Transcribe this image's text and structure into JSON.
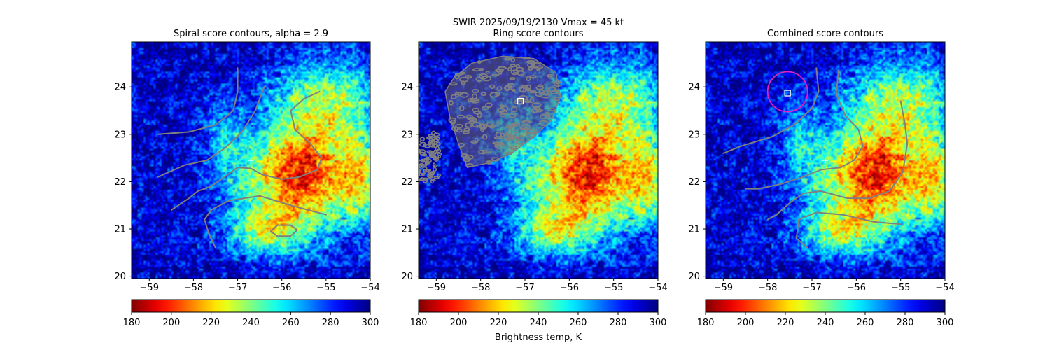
{
  "suptitle": "SWIR  2025/09/19/2130    Vmax = 45 kt",
  "colorbar_label": "Brightness temp, K",
  "colormap": "jet_r",
  "colors": {
    "contour_line": "#808080",
    "center_marker": "#ffffff",
    "ring_marker": "#ffffff",
    "circle": "#e020c0"
  },
  "chart_data": [
    {
      "type": "heatmap",
      "title": "Spiral score contours, alpha =  2.9",
      "x_ticks": [
        -59,
        -58,
        -57,
        -56,
        -55,
        -54
      ],
      "y_ticks": [
        20,
        21,
        22,
        23,
        24
      ],
      "xlim": [
        -59.4,
        -54.0
      ],
      "ylim": [
        19.95,
        24.95
      ],
      "colorbar": {
        "min": 180,
        "max": 300,
        "ticks": [
          180,
          200,
          220,
          240,
          260,
          280,
          300
        ]
      },
      "center_plus": {
        "lon": -56.7,
        "lat": 22.45
      },
      "contours": [
        [
          [
            -57.0,
            24.4
          ],
          [
            -57.0,
            23.9
          ],
          [
            -57.1,
            23.5
          ],
          [
            -57.5,
            23.2
          ],
          [
            -58.1,
            23.05
          ],
          [
            -58.8,
            23.0
          ]
        ],
        [
          [
            -56.4,
            24.0
          ],
          [
            -56.6,
            23.5
          ],
          [
            -56.9,
            23.05
          ],
          [
            -57.3,
            22.7
          ],
          [
            -57.7,
            22.45
          ],
          [
            -58.2,
            22.35
          ],
          [
            -58.8,
            22.1
          ]
        ],
        [
          [
            -55.15,
            23.9
          ],
          [
            -55.5,
            23.75
          ],
          [
            -55.8,
            23.5
          ],
          [
            -55.7,
            23.1
          ],
          [
            -55.35,
            22.8
          ],
          [
            -55.1,
            22.5
          ],
          [
            -55.2,
            22.25
          ],
          [
            -55.6,
            22.1
          ],
          [
            -56.0,
            22.05
          ],
          [
            -56.45,
            22.15
          ],
          [
            -56.7,
            22.28
          ],
          [
            -57.0,
            22.3
          ],
          [
            -57.3,
            22.1
          ],
          [
            -57.6,
            21.9
          ],
          [
            -57.9,
            21.8
          ],
          [
            -58.1,
            21.65
          ],
          [
            -58.5,
            21.4
          ]
        ],
        [
          [
            -57.5,
            20.6
          ],
          [
            -57.65,
            20.9
          ],
          [
            -57.75,
            21.2
          ],
          [
            -57.6,
            21.4
          ],
          [
            -57.2,
            21.6
          ],
          [
            -56.5,
            21.7
          ],
          [
            -55.8,
            21.5
          ],
          [
            -55.4,
            21.4
          ],
          [
            -55.0,
            21.3
          ]
        ],
        [
          [
            -56.1,
            20.85
          ],
          [
            -55.8,
            20.85
          ],
          [
            -55.65,
            20.98
          ],
          [
            -55.8,
            21.08
          ],
          [
            -56.1,
            21.08
          ],
          [
            -56.25,
            20.95
          ],
          [
            -56.1,
            20.85
          ]
        ]
      ]
    },
    {
      "type": "heatmap",
      "title": "Ring score contours",
      "x_ticks": [
        -59,
        -58,
        -57,
        -56,
        -55,
        -54
      ],
      "y_ticks": [
        20,
        21,
        22,
        23,
        24
      ],
      "xlim": [
        -59.4,
        -54.0
      ],
      "ylim": [
        19.95,
        24.95
      ],
      "colorbar": {
        "min": 180,
        "max": 300,
        "ticks": [
          180,
          200,
          220,
          240,
          260,
          280,
          300
        ]
      },
      "ring_marker": {
        "lon": -57.1,
        "lat": 23.7
      },
      "contour_region": [
        [
          -58.6,
          24.2
        ],
        [
          -58.2,
          24.5
        ],
        [
          -57.5,
          24.65
        ],
        [
          -56.8,
          24.6
        ],
        [
          -56.3,
          24.3
        ],
        [
          -56.2,
          23.8
        ],
        [
          -56.4,
          23.3
        ],
        [
          -56.8,
          22.95
        ],
        [
          -57.3,
          22.6
        ],
        [
          -57.8,
          22.4
        ],
        [
          -58.3,
          22.3
        ],
        [
          -58.5,
          22.8
        ],
        [
          -58.7,
          23.4
        ],
        [
          -58.8,
          23.9
        ],
        [
          -58.6,
          24.2
        ]
      ],
      "contour_scatter_region": [
        [
          -59.4,
          22.0
        ],
        [
          -59.4,
          22.85
        ],
        [
          -59.0,
          23.1
        ],
        [
          -58.9,
          22.5
        ],
        [
          -58.9,
          22.1
        ],
        [
          -59.1,
          22.0
        ]
      ]
    },
    {
      "type": "heatmap",
      "title": "Combined score contours",
      "x_ticks": [
        -59,
        -58,
        -57,
        -56,
        -55,
        -54
      ],
      "y_ticks": [
        20,
        21,
        22,
        23,
        24
      ],
      "xlim": [
        -59.4,
        -54.0
      ],
      "ylim": [
        19.95,
        24.95
      ],
      "colorbar": {
        "min": 180,
        "max": 300,
        "ticks": [
          180,
          200,
          220,
          240,
          260,
          280,
          300
        ]
      },
      "center_plus": {
        "lon": -56.7,
        "lat": 22.45
      },
      "ring_marker": {
        "lon": -57.55,
        "lat": 23.87
      },
      "circle": {
        "lon": -57.55,
        "lat": 23.9,
        "radius_deg": 0.45
      },
      "contours": [
        [
          [
            -56.9,
            24.4
          ],
          [
            -56.85,
            23.9
          ],
          [
            -57.0,
            23.55
          ],
          [
            -57.4,
            23.2
          ],
          [
            -57.9,
            22.95
          ],
          [
            -58.6,
            22.75
          ],
          [
            -59.0,
            22.6
          ]
        ],
        [
          [
            -56.4,
            24.35
          ],
          [
            -56.45,
            23.85
          ],
          [
            -56.25,
            23.4
          ],
          [
            -55.95,
            23.1
          ],
          [
            -55.85,
            22.75
          ],
          [
            -56.05,
            22.45
          ],
          [
            -56.35,
            22.3
          ],
          [
            -56.8,
            22.25
          ],
          [
            -57.2,
            22.1
          ],
          [
            -57.7,
            21.95
          ],
          [
            -58.2,
            21.85
          ],
          [
            -58.5,
            21.85
          ]
        ],
        [
          [
            -55.0,
            23.7
          ],
          [
            -54.9,
            23.2
          ],
          [
            -54.85,
            22.8
          ],
          [
            -54.95,
            22.2
          ],
          [
            -55.25,
            21.8
          ],
          [
            -55.7,
            21.65
          ],
          [
            -56.2,
            21.65
          ],
          [
            -56.8,
            21.8
          ],
          [
            -57.2,
            21.75
          ],
          [
            -57.5,
            21.55
          ],
          [
            -57.8,
            21.3
          ],
          [
            -58.0,
            21.2
          ]
        ],
        [
          [
            -57.1,
            20.6
          ],
          [
            -57.35,
            20.8
          ],
          [
            -57.3,
            21.2
          ],
          [
            -56.9,
            21.35
          ],
          [
            -56.3,
            21.3
          ],
          [
            -55.6,
            21.15
          ],
          [
            -55.0,
            21.1
          ]
        ]
      ]
    }
  ]
}
